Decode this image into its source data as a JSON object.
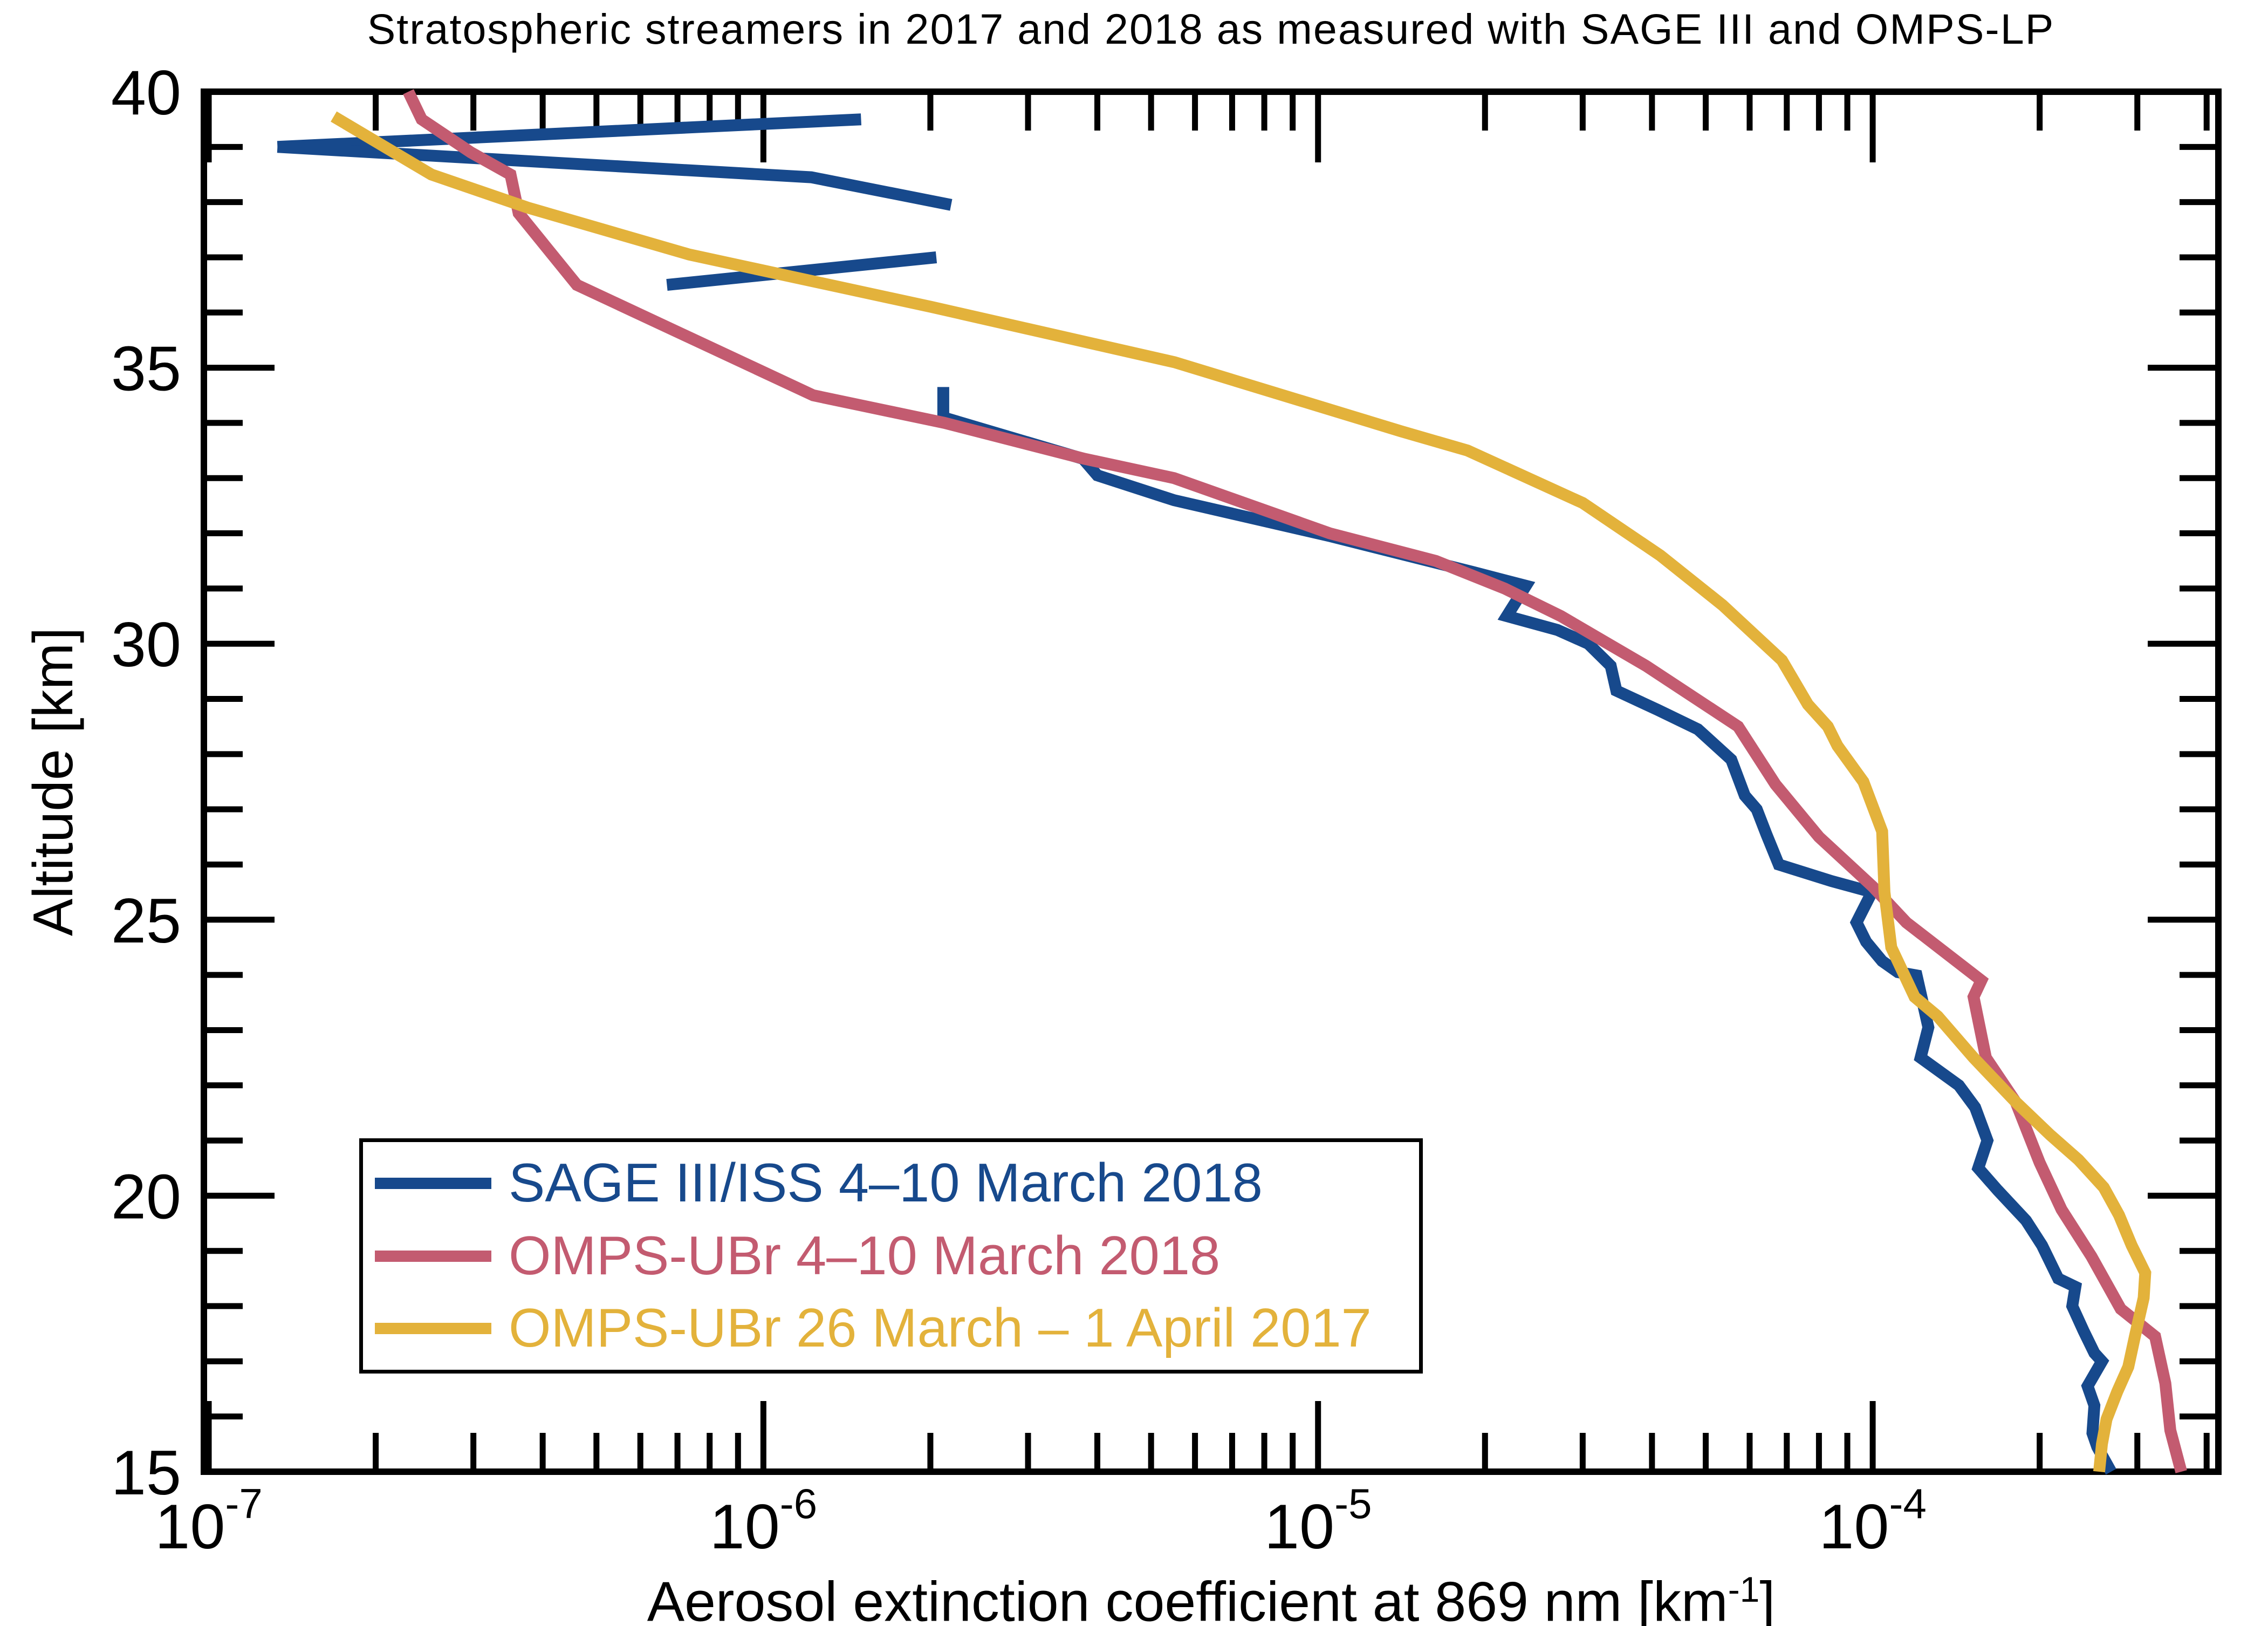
{
  "figure": {
    "background": "#ffffff",
    "text_color": "#000000"
  },
  "chart_data": {
    "type": "line",
    "title": "Stratospheric streamers in 2017 and 2018 as measured with SAGE III and OMPS-LP",
    "xlabel_main": "Aerosol extinction coefficient at 869 nm [km",
    "xlabel_sup": "-1",
    "xlabel_close": "]",
    "ylabel": "Altitude [km]",
    "x_scale": "log",
    "xlim": [
      9.8e-08,
      0.00042
    ],
    "ylim": [
      15,
      40
    ],
    "grid": false,
    "legend_position": "lower-left",
    "x_major_ticks": [
      {
        "value": 1e-07,
        "mantissa": "10",
        "exponent": "-7"
      },
      {
        "value": 1e-06,
        "mantissa": "10",
        "exponent": "-6"
      },
      {
        "value": 1e-05,
        "mantissa": "10",
        "exponent": "-5"
      },
      {
        "value": 0.0001,
        "mantissa": "10",
        "exponent": "-4"
      }
    ],
    "x_minor_ticks": [
      2e-07,
      3e-07,
      4e-07,
      5e-07,
      6e-07,
      7e-07,
      8e-07,
      9e-07,
      2e-06,
      3e-06,
      4e-06,
      5e-06,
      6e-06,
      7e-06,
      8e-06,
      9e-06,
      2e-05,
      3e-05,
      4e-05,
      5e-05,
      6e-05,
      7e-05,
      8e-05,
      9e-05,
      0.0002,
      0.0003,
      0.0004
    ],
    "y_major_ticks": [
      {
        "value": 15,
        "label": "15"
      },
      {
        "value": 20,
        "label": "20"
      },
      {
        "value": 25,
        "label": "25"
      },
      {
        "value": 30,
        "label": "30"
      },
      {
        "value": 35,
        "label": "35"
      },
      {
        "value": 40,
        "label": "40"
      }
    ],
    "y_minor_step": 1,
    "series": [
      {
        "name": "SAGE III/ISS 4–10 March 2018",
        "color": "#17498C",
        "segments": [
          [
            [
              1.5e-06,
              39.5
            ],
            [
              1.33e-07,
              39.0
            ]
          ],
          [
            [
              1.33e-07,
              39.0
            ],
            [
              1.22e-06,
              38.45
            ],
            [
              2.18e-06,
              37.95
            ]
          ],
          [
            [
              6.7e-07,
              36.5
            ],
            [
              2.05e-06,
              37.0
            ]
          ],
          [
            [
              2.11e-06,
              34.65
            ],
            [
              2.11e-06,
              34.1
            ],
            [
              3.77e-06,
              33.35
            ],
            [
              4e-06,
              33.05
            ],
            [
              5.5e-06,
              32.6
            ],
            [
              1.05e-05,
              31.95
            ],
            [
              1.9e-05,
              31.3
            ],
            [
              2.37e-05,
              31.05
            ],
            [
              2.19e-05,
              30.5
            ],
            [
              2.7e-05,
              30.25
            ],
            [
              3.07e-05,
              30.0
            ],
            [
              3.37e-05,
              29.6
            ],
            [
              3.45e-05,
              29.15
            ],
            [
              4.1e-05,
              28.8
            ],
            [
              4.84e-05,
              28.45
            ],
            [
              5.56e-05,
              27.9
            ],
            [
              5.88e-05,
              27.25
            ],
            [
              6.18e-05,
              27.0
            ],
            [
              6.43e-05,
              26.55
            ],
            [
              6.77e-05,
              26.0
            ],
            [
              8.43e-05,
              25.7
            ],
            [
              9.97e-05,
              25.5
            ],
            [
              9.35e-05,
              24.95
            ],
            [
              9.73e-05,
              24.6
            ],
            [
              0.000104,
              24.25
            ],
            [
              0.000111,
              24.05
            ],
            [
              0.00012,
              23.99
            ],
            [
              0.000126,
              23.05
            ],
            [
              0.000122,
              22.5
            ],
            [
              0.000143,
              22.0
            ],
            [
              0.000153,
              21.6
            ],
            [
              0.000161,
              21.0
            ],
            [
              0.000155,
              20.5
            ],
            [
              0.000168,
              20.1
            ],
            [
              0.000189,
              19.55
            ],
            [
              0.000202,
              19.1
            ],
            [
              0.000216,
              18.5
            ],
            [
              0.000232,
              18.35
            ],
            [
              0.000229,
              18.0
            ],
            [
              0.00024,
              17.55
            ],
            [
              0.000251,
              17.15
            ],
            [
              0.000259,
              17.0
            ],
            [
              0.000244,
              16.55
            ],
            [
              0.000251,
              16.2
            ],
            [
              0.000249,
              15.7
            ],
            [
              0.000254,
              15.45
            ],
            [
              0.000269,
              15.0
            ]
          ]
        ]
      },
      {
        "name": "OMPS-UBr 4–10 March 2018",
        "color": "#C35B70",
        "segments": [
          [
            [
              2.29e-07,
              40.0
            ],
            [
              2.42e-07,
              39.5
            ],
            [
              2.97e-07,
              38.9
            ],
            [
              3.5e-07,
              38.5
            ],
            [
              3.62e-07,
              37.8
            ],
            [
              4.61e-07,
              36.5
            ],
            [
              1.23e-06,
              34.5
            ],
            [
              2.12e-06,
              34.0
            ],
            [
              3.79e-06,
              33.35
            ],
            [
              5.5e-06,
              33.0
            ],
            [
              1.05e-05,
              32.0
            ],
            [
              1.63e-05,
              31.5
            ],
            [
              2.17e-05,
              31.0
            ],
            [
              2.74e-05,
              30.5
            ],
            [
              3.9e-05,
              29.6
            ],
            [
              5.72e-05,
              28.5
            ],
            [
              6.68e-05,
              27.45
            ],
            [
              8e-05,
              26.5
            ],
            [
              0.0001,
              25.6
            ],
            [
              0.000115,
              24.95
            ],
            [
              0.000157,
              23.9
            ],
            [
              0.000152,
              23.6
            ],
            [
              0.00016,
              22.5
            ],
            [
              0.000181,
              21.7
            ],
            [
              0.0002,
              20.6
            ],
            [
              0.000219,
              19.75
            ],
            [
              0.000248,
              18.9
            ],
            [
              0.00028,
              17.95
            ],
            [
              0.000323,
              17.45
            ],
            [
              0.000337,
              16.6
            ],
            [
              0.000344,
              15.75
            ],
            [
              0.00036,
              15.0
            ]
          ]
        ]
      },
      {
        "name": "OMPS-UBr 26 March – 1 April 2017",
        "color": "#E3B23B",
        "segments": [
          [
            [
              1.68e-07,
              39.55
            ],
            [
              2.52e-07,
              38.5
            ],
            [
              3.76e-07,
              37.9
            ],
            [
              7.35e-07,
              37.05
            ],
            [
              2.01e-06,
              36.1
            ],
            [
              5.51e-06,
              35.1
            ],
            [
              1.41e-05,
              33.85
            ],
            [
              1.86e-05,
              33.5
            ],
            [
              3e-05,
              32.55
            ],
            [
              4.14e-05,
              31.6
            ],
            [
              5.36e-05,
              30.7
            ],
            [
              6.86e-05,
              29.7
            ],
            [
              7.64e-05,
              28.9
            ],
            [
              8.3e-05,
              28.5
            ],
            [
              8.64e-05,
              28.15
            ],
            [
              9.62e-05,
              27.5
            ],
            [
              0.000104,
              26.6
            ],
            [
              0.000105,
              25.5
            ],
            [
              0.000108,
              24.5
            ],
            [
              0.000119,
              23.6
            ],
            [
              0.000131,
              23.25
            ],
            [
              0.000152,
              22.5
            ],
            [
              0.000181,
              21.7
            ],
            [
              0.000209,
              21.1
            ],
            [
              0.000235,
              20.65
            ],
            [
              0.000261,
              20.15
            ],
            [
              0.000278,
              19.65
            ],
            [
              0.000293,
              19.1
            ],
            [
              0.00031,
              18.6
            ],
            [
              0.000308,
              18.15
            ],
            [
              0.000297,
              17.45
            ],
            [
              0.000289,
              16.9
            ],
            [
              0.000276,
              16.45
            ],
            [
              0.000264,
              15.95
            ],
            [
              0.000259,
              15.5
            ],
            [
              0.000256,
              15.0
            ]
          ]
        ]
      }
    ]
  }
}
